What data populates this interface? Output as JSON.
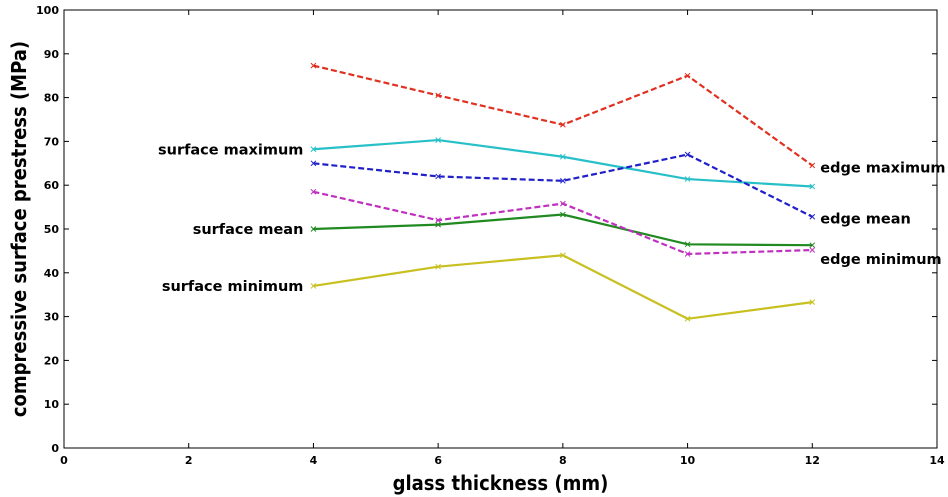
{
  "chart_data": {
    "type": "line",
    "title": "",
    "xlabel": "glass thickness (mm)",
    "ylabel": "compressive surface prestress (MPa)",
    "xlim": [
      0,
      14
    ],
    "ylim": [
      0,
      100
    ],
    "xticks": [
      0,
      2,
      4,
      6,
      8,
      10,
      12,
      14
    ],
    "yticks": [
      0,
      10,
      20,
      30,
      40,
      50,
      60,
      70,
      80,
      90,
      100
    ],
    "grid": false,
    "legend": "none",
    "x": [
      4,
      6,
      8,
      10,
      12
    ],
    "series": [
      {
        "name": "edge maximum",
        "values": [
          87.3,
          80.5,
          73.8,
          85.0,
          64.5
        ],
        "color": "#e03020",
        "dash": "dashed",
        "label_side": "right"
      },
      {
        "name": "surface maximum",
        "values": [
          68.2,
          70.3,
          66.5,
          61.4,
          59.7
        ],
        "color": "#28c0c8",
        "dash": "solid",
        "label_side": "left"
      },
      {
        "name": "edge mean",
        "values": [
          65.0,
          62.0,
          61.0,
          67.0,
          52.8
        ],
        "color": "#2020c8",
        "dash": "dashed",
        "label_side": "right"
      },
      {
        "name": "surface mean",
        "values": [
          50.0,
          51.0,
          53.3,
          46.5,
          46.3
        ],
        "color": "#208a20",
        "dash": "solid",
        "label_side": "left"
      },
      {
        "name": "edge minimum",
        "values": [
          58.5,
          52.0,
          55.8,
          44.3,
          45.2
        ],
        "color": "#c030c0",
        "dash": "dashed",
        "label_side": "right"
      },
      {
        "name": "surface minimum",
        "values": [
          37.0,
          41.4,
          44.0,
          29.5,
          33.3
        ],
        "color": "#c8c020",
        "dash": "solid",
        "label_side": "left"
      }
    ]
  }
}
